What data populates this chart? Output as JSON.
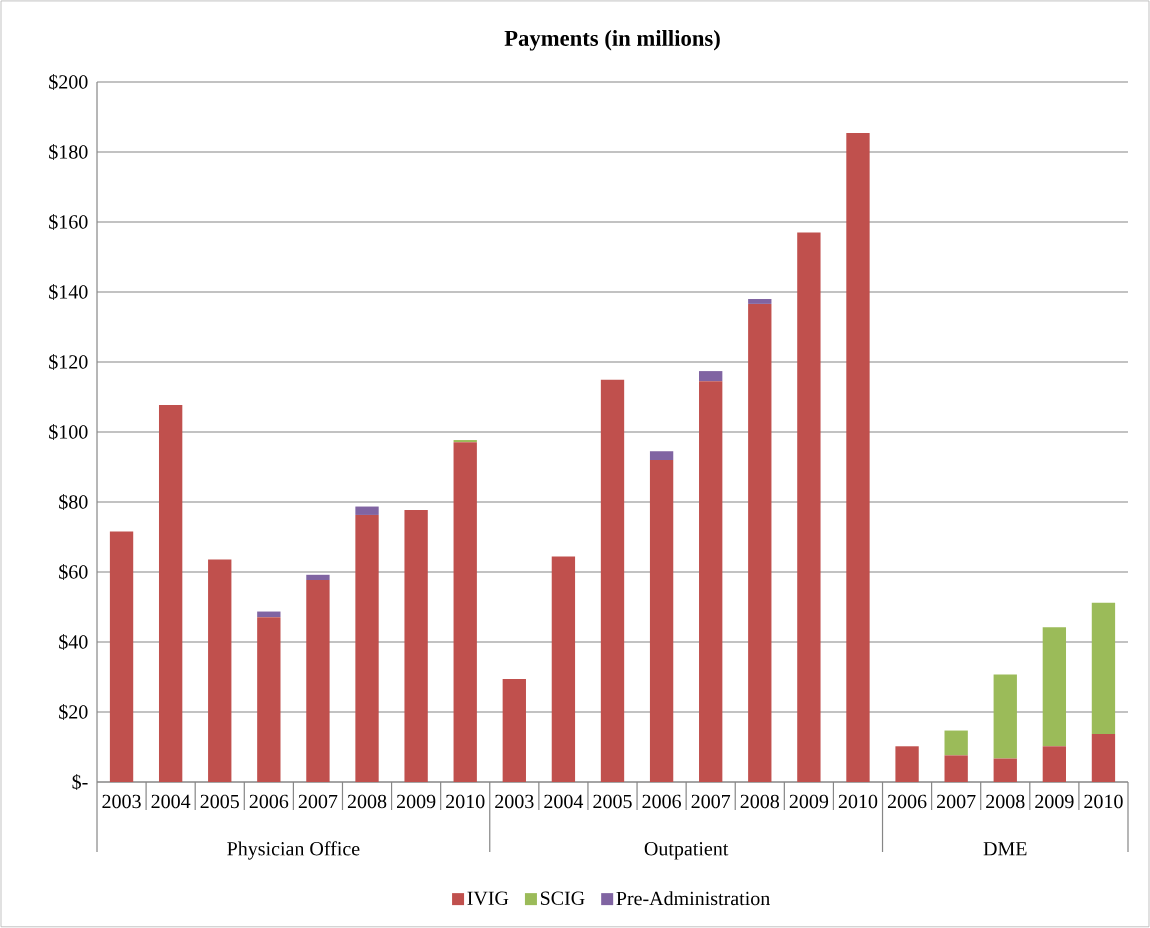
{
  "chart_data": {
    "type": "bar",
    "stacked": true,
    "title": "Payments  (in millions)",
    "categories": [
      "2003",
      "2004",
      "2005",
      "2006",
      "2007",
      "2008",
      "2009",
      "2010",
      "2003",
      "2004",
      "2005",
      "2006",
      "2007",
      "2008",
      "2009",
      "2010",
      "2006",
      "2007",
      "2008",
      "2009",
      "2010"
    ],
    "annotations": [
      "Physician Office",
      "Outpatient",
      "DME"
    ],
    "series": [
      {
        "name": "IVIG",
        "color": "#c0504d",
        "values": [
          71.6,
          107.7,
          63.6,
          47.1,
          57.7,
          76.3,
          77.7,
          97.1,
          29.4,
          64.4,
          114.9,
          92.0,
          114.5,
          136.6,
          157.0,
          185.4,
          10.2,
          7.6,
          6.7,
          10.2,
          13.7
        ]
      },
      {
        "name": "SCIG",
        "color": "#9bbb59",
        "values": [
          null,
          null,
          null,
          null,
          null,
          null,
          null,
          0.6,
          null,
          null,
          null,
          null,
          null,
          null,
          null,
          null,
          null,
          7.1,
          24.0,
          34.0,
          37.5
        ]
      },
      {
        "name": "Pre-Administration",
        "color": "#8064a2",
        "values": [
          null,
          null,
          null,
          1.6,
          1.5,
          2.4,
          null,
          null,
          null,
          null,
          null,
          2.5,
          2.9,
          1.4,
          null,
          null,
          null,
          null,
          null,
          null,
          null
        ]
      }
    ],
    "ylim": [
      0,
      200
    ],
    "yticks": [
      {
        "value": 0,
        "label": "$-"
      },
      {
        "value": 20,
        "label": "$20"
      },
      {
        "value": 40,
        "label": "$40"
      },
      {
        "value": 60,
        "label": "$60"
      },
      {
        "value": 80,
        "label": "$80"
      },
      {
        "value": 100,
        "label": "$100"
      },
      {
        "value": 120,
        "label": "$120"
      },
      {
        "value": 140,
        "label": "$140"
      },
      {
        "value": 160,
        "label": "$160"
      },
      {
        "value": 180,
        "label": "$180"
      },
      {
        "value": 200,
        "label": "$200"
      }
    ],
    "grid": "y",
    "legend": "bottom"
  }
}
